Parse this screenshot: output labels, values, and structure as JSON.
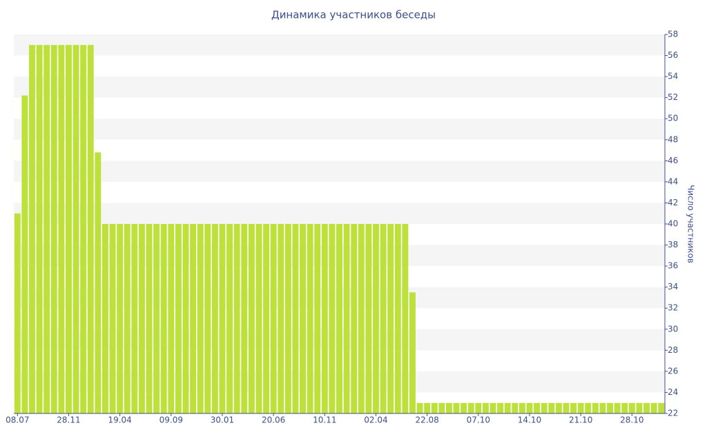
{
  "chart_data": {
    "type": "bar",
    "title": "Динамика участников беседы",
    "y_label": "Число участников",
    "categories": [
      "08.07",
      null,
      null,
      null,
      null,
      null,
      null,
      "28.11",
      null,
      null,
      null,
      null,
      null,
      null,
      "19.04",
      null,
      null,
      null,
      null,
      null,
      null,
      "09.09",
      null,
      null,
      null,
      null,
      null,
      null,
      "30.01",
      null,
      null,
      null,
      null,
      null,
      null,
      "20.06",
      null,
      null,
      null,
      null,
      null,
      null,
      "10.11",
      null,
      null,
      null,
      null,
      null,
      null,
      "02.04",
      null,
      null,
      null,
      null,
      null,
      null,
      "22.08",
      null,
      null,
      null,
      null,
      null,
      null,
      "07.10",
      null,
      null,
      null,
      null,
      null,
      null,
      "14.10",
      null,
      null,
      null,
      null,
      null,
      null,
      "21.10",
      null,
      null,
      null,
      null,
      null,
      null,
      "28.10",
      null,
      null,
      null,
      null
    ],
    "values": [
      41,
      52.2,
      57,
      57,
      57,
      57,
      57,
      57,
      57,
      57,
      57,
      46.8,
      40,
      40,
      40,
      40,
      40,
      40,
      40,
      40,
      40,
      40,
      40,
      40,
      40,
      40,
      40,
      40,
      40,
      40,
      40,
      40,
      40,
      40,
      40,
      40,
      40,
      40,
      40,
      40,
      40,
      40,
      40,
      40,
      40,
      40,
      40,
      40,
      40,
      40,
      40,
      40,
      40,
      40,
      33.5,
      23,
      23,
      23,
      23,
      23,
      23,
      23,
      23,
      23,
      23,
      23,
      23,
      23,
      23,
      23,
      23,
      23,
      23,
      23,
      23,
      23,
      23,
      23,
      23,
      23,
      23,
      23,
      23,
      23,
      23,
      23,
      23,
      23,
      23
    ],
    "color": "#bde03a",
    "ylim": [
      22,
      58
    ],
    "yticks": [
      22,
      24,
      26,
      28,
      30,
      32,
      34,
      36,
      38,
      40,
      42,
      44,
      46,
      48,
      50,
      52,
      54,
      56,
      58
    ],
    "grid": true
  }
}
